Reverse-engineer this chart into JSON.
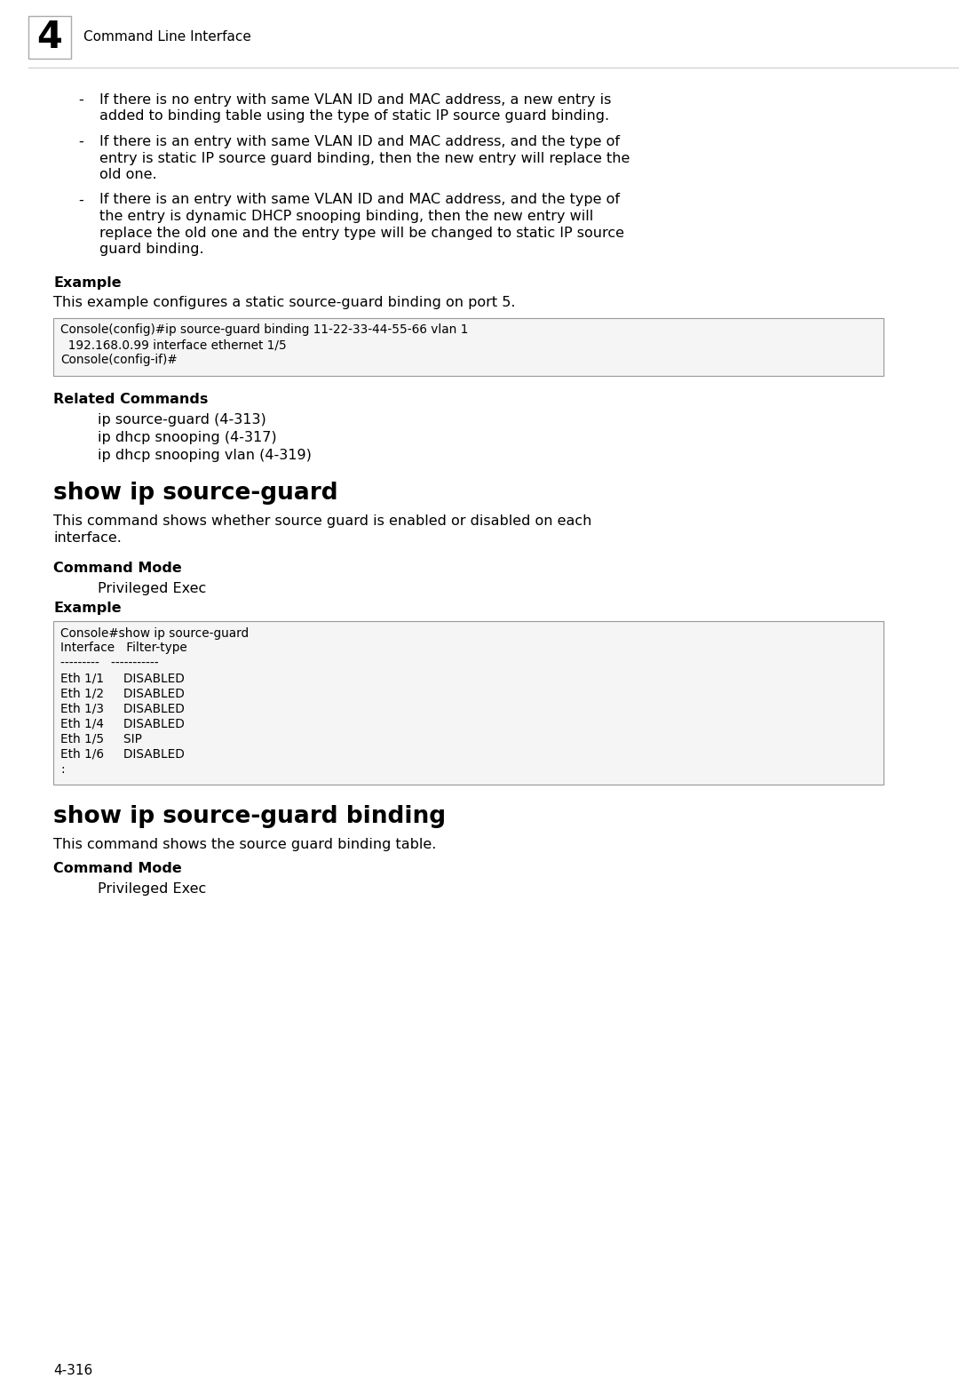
{
  "bg_color": "#ffffff",
  "page_number": "4-316",
  "chapter_number": "4",
  "chapter_title": "Command Line Interface",
  "bullet_texts": [
    [
      "If there is no entry with same VLAN ID and MAC address, a new entry is",
      "added to binding table using the type of static IP source guard binding."
    ],
    [
      "If there is an entry with same VLAN ID and MAC address, and the type of",
      "entry is static IP source guard binding, then the new entry will replace the",
      "old one."
    ],
    [
      "If there is an entry with same VLAN ID and MAC address, and the type of",
      "the entry is dynamic DHCP snooping binding, then the new entry will",
      "replace the old one and the entry type will be changed to static IP source",
      "guard binding."
    ]
  ],
  "example1_label": "Example",
  "example1_desc": "This example configures a static source-guard binding on port 5.",
  "example1_code": "Console(config)#ip source-guard binding 11-22-33-44-55-66 vlan 1\n  192.168.0.99 interface ethernet 1/5\nConsole(config-if)#",
  "related_label": "Related Commands",
  "related_items": [
    "ip source-guard (4-313)",
    "ip dhcp snooping (4-317)",
    "ip dhcp snooping vlan (4-319)"
  ],
  "section1_title": "show ip source-guard",
  "section1_desc_lines": [
    "This command shows whether source guard is enabled or disabled on each",
    "interface."
  ],
  "cmd_mode_label": "Command Mode",
  "cmd_mode_value": "Privileged Exec",
  "example2_label": "Example",
  "example2_code": "Console#show ip source-guard\nInterface   Filter-type\n---------   -----------\nEth 1/1     DISABLED\nEth 1/2     DISABLED\nEth 1/3     DISABLED\nEth 1/4     DISABLED\nEth 1/5     SIP\nEth 1/6     DISABLED\n:",
  "section2_title": "show ip source-guard binding",
  "section2_desc": "This command shows the source guard binding table.",
  "cmd_mode_label2": "Command Mode",
  "cmd_mode_value2": "Privileged Exec"
}
